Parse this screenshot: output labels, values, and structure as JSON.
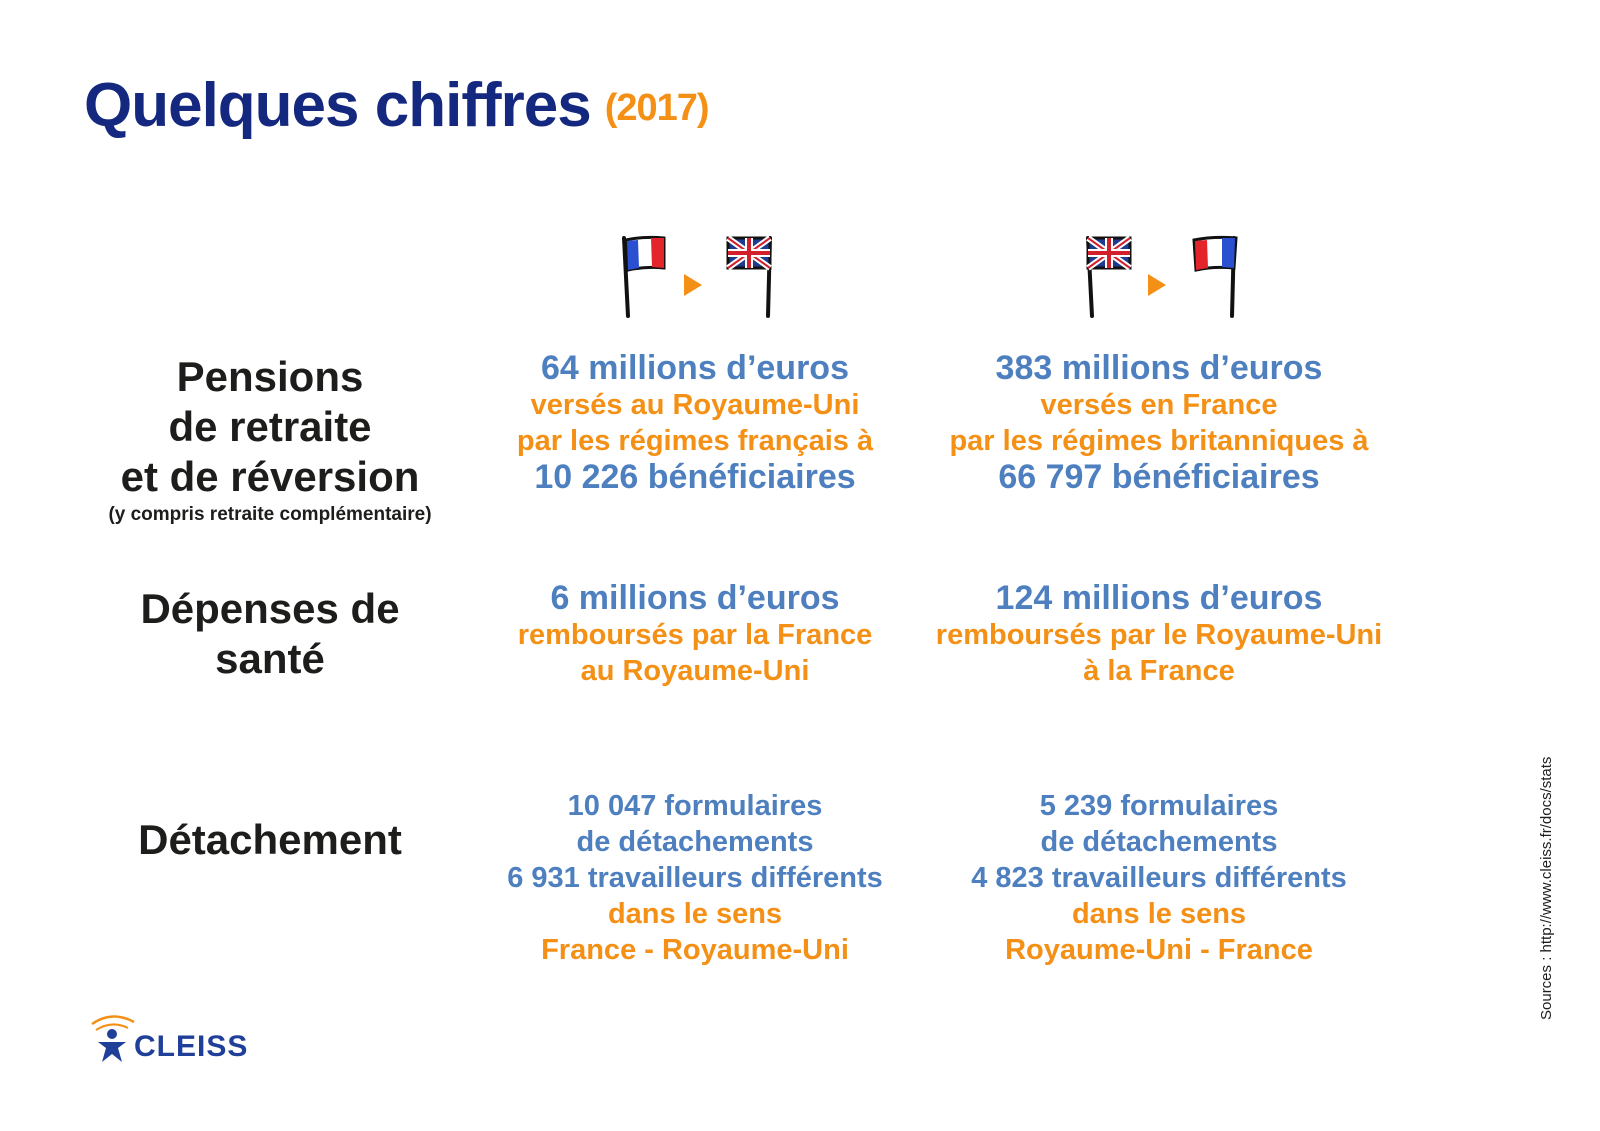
{
  "title": {
    "main": "Quelques chiffres",
    "year": "(2017)"
  },
  "directions": [
    {
      "from_icon": "france-flag-icon",
      "to_icon": "uk-flag-icon"
    },
    {
      "from_icon": "uk-flag-icon",
      "to_icon": "france-flag-icon"
    }
  ],
  "colors": {
    "title": "#13287e",
    "accent": "#f39015",
    "value": "#4e7fbf",
    "label": "#1d1d1b"
  },
  "rows": {
    "pensions": {
      "label_lines": [
        "Pensions",
        "de retraite",
        "et de réversion"
      ],
      "note": "(y compris retraite complémentaire)",
      "fr_uk": [
        "64 millions d’euros",
        "versés au Royaume-Uni",
        "par les régimes français à",
        "10 226 bénéficiaires"
      ],
      "uk_fr": [
        "383 millions d’euros",
        "versés en France",
        "par les régimes britanniques à",
        "66 797 bénéficiaires"
      ]
    },
    "sante": {
      "label_lines": [
        "Dépenses de",
        "santé"
      ],
      "fr_uk": [
        "6 millions d’euros",
        "remboursés par la France",
        "au Royaume-Uni"
      ],
      "uk_fr": [
        "124 millions d’euros",
        "remboursés par le Royaume-Uni",
        "à la France"
      ]
    },
    "detachement": {
      "label_lines": [
        "Détachement"
      ],
      "fr_uk": [
        "10 047 formulaires",
        "de détachements",
        "6 931 travailleurs différents",
        "dans le sens",
        "France - Royaume-Uni"
      ],
      "uk_fr": [
        "5 239 formulaires",
        "de détachements",
        "4 823 travailleurs différents",
        "dans le sens",
        "Royaume-Uni - France"
      ]
    }
  },
  "logo": {
    "text": "CLEISS"
  },
  "source": "Sources : http://www.cleiss.fr/docs/stats"
}
